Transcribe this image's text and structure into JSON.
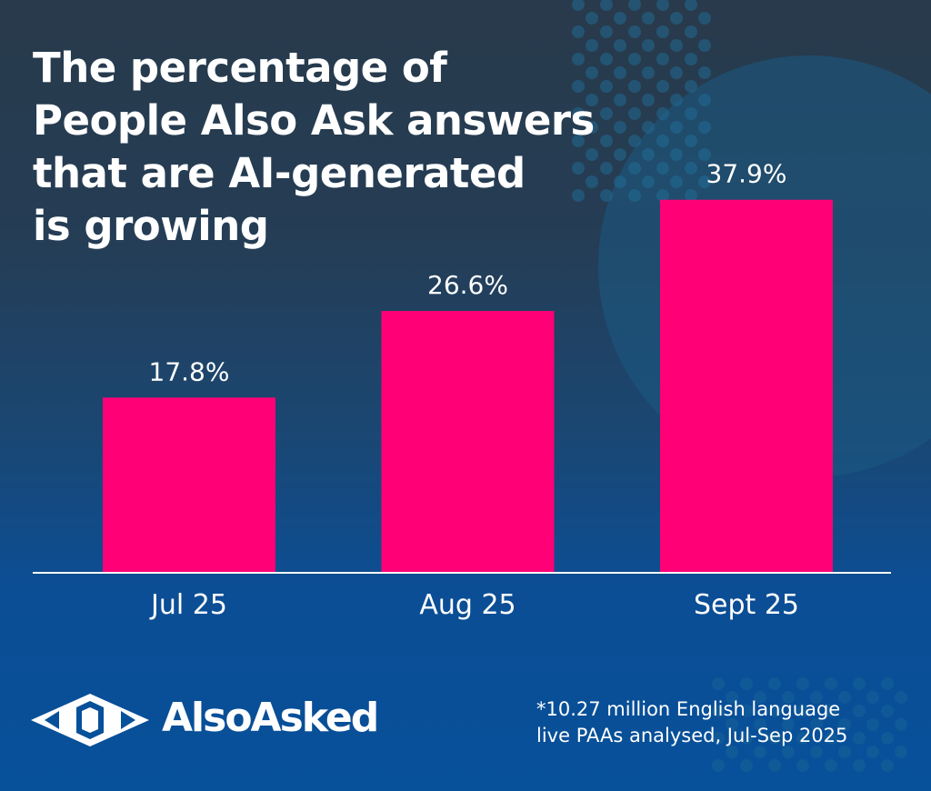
{
  "title_lines": [
    "The percentage of",
    "People Also Ask answers",
    "that are AI-generated",
    "is growing"
  ],
  "brand": "AlsoAsked",
  "footnote_lines": [
    "*10.27 million English language",
    "live PAAs analysed, Jul-Sep 2025"
  ],
  "colors": {
    "bar": "#ff0077",
    "background_top": "#283a4b",
    "background_bottom": "#07509a",
    "text": "#ffffff"
  },
  "chart_data": {
    "type": "bar",
    "title": "The percentage of People Also Ask answers that are AI-generated is growing",
    "categories": [
      "Jul 25",
      "Aug 25",
      "Sept 25"
    ],
    "values": [
      17.8,
      26.6,
      37.9
    ],
    "data_labels": [
      "17.8%",
      "26.6%",
      "37.9%"
    ],
    "xlabel": "",
    "ylabel": "",
    "ylim": [
      0,
      40
    ],
    "grid": false,
    "unit": "%"
  }
}
